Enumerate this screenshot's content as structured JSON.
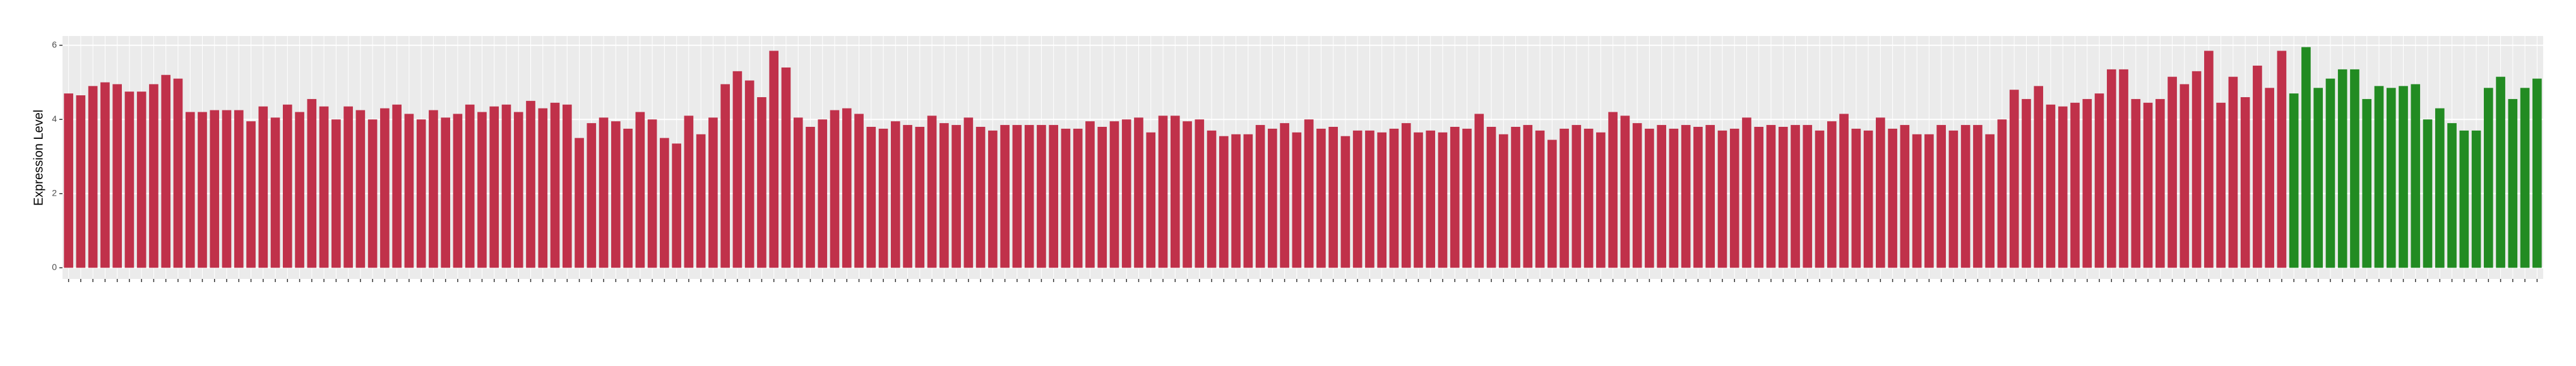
{
  "chart_data": {
    "type": "bar",
    "y_label": "Expression Level",
    "values": [
      4.7,
      4.65,
      4.9,
      5.0,
      4.95,
      4.75,
      4.75,
      4.95,
      5.2,
      5.1,
      4.2,
      4.2,
      4.25,
      4.25,
      4.25,
      3.95,
      4.35,
      4.05,
      4.4,
      4.2,
      4.55,
      4.35,
      4.0,
      4.35,
      4.25,
      4.0,
      4.3,
      4.4,
      4.15,
      4.0,
      4.25,
      4.05,
      4.15,
      4.4,
      4.2,
      4.35,
      4.4,
      4.2,
      4.5,
      4.3,
      4.45,
      4.4,
      3.5,
      3.9,
      4.05,
      3.95,
      3.75,
      4.2,
      4.0,
      3.5,
      3.35,
      4.1,
      3.6,
      4.05,
      4.95,
      5.3,
      5.05,
      4.6,
      5.85,
      5.4,
      4.05,
      3.8,
      4.0,
      4.25,
      4.3,
      4.15,
      3.8,
      3.75,
      3.95,
      3.85,
      3.8,
      4.1,
      3.9,
      3.85,
      4.05,
      3.8,
      3.7,
      3.85,
      3.85,
      3.85,
      3.85,
      3.85,
      3.75,
      3.75,
      3.95,
      3.8,
      3.95,
      4.0,
      4.05,
      3.65,
      4.1,
      4.1,
      3.95,
      4.0,
      3.7,
      3.55,
      3.6,
      3.6,
      3.85,
      3.75,
      3.9,
      3.65,
      4.0,
      3.75,
      3.8,
      3.55,
      3.7,
      3.7,
      3.65,
      3.75,
      3.9,
      3.65,
      3.7,
      3.65,
      3.8,
      3.75,
      4.15,
      3.8,
      3.6,
      3.8,
      3.85,
      3.7,
      3.45,
      3.75,
      3.85,
      3.75,
      3.65,
      4.2,
      4.1,
      3.9,
      3.75,
      3.85,
      3.75,
      3.85,
      3.8,
      3.85,
      3.7,
      3.75,
      4.05,
      3.8,
      3.85,
      3.8,
      3.85,
      3.85,
      3.7,
      3.95,
      4.15,
      3.75,
      3.7,
      4.05,
      3.75,
      3.85,
      3.6,
      3.6,
      3.85,
      3.7,
      3.85,
      3.85,
      3.6,
      4.0,
      4.8,
      4.55,
      4.9,
      4.4,
      4.35,
      4.45,
      4.55,
      4.7,
      5.35,
      5.35,
      4.55,
      4.45,
      4.55,
      5.15,
      4.95,
      5.3,
      5.85,
      4.45,
      5.15,
      4.6,
      5.45,
      4.85,
      5.85,
      4.7,
      5.95,
      4.85,
      5.1,
      5.35,
      5.35,
      4.55,
      4.9,
      4.85,
      4.9,
      4.95,
      4.0,
      4.3,
      3.9,
      3.7,
      3.7,
      4.85,
      5.15,
      4.55,
      4.85,
      5.1
    ],
    "colors": [
      "#c0314a",
      "#c0314a",
      "#c0314a",
      "#c0314a",
      "#c0314a",
      "#c0314a",
      "#c0314a",
      "#c0314a",
      "#c0314a",
      "#c0314a",
      "#c0314a",
      "#c0314a",
      "#c0314a",
      "#c0314a",
      "#c0314a",
      "#c0314a",
      "#c0314a",
      "#c0314a",
      "#c0314a",
      "#c0314a",
      "#c0314a",
      "#c0314a",
      "#c0314a",
      "#c0314a",
      "#c0314a",
      "#c0314a",
      "#c0314a",
      "#c0314a",
      "#c0314a",
      "#c0314a",
      "#c0314a",
      "#c0314a",
      "#c0314a",
      "#c0314a",
      "#c0314a",
      "#c0314a",
      "#c0314a",
      "#c0314a",
      "#c0314a",
      "#c0314a",
      "#c0314a",
      "#c0314a",
      "#c0314a",
      "#c0314a",
      "#c0314a",
      "#c0314a",
      "#c0314a",
      "#c0314a",
      "#c0314a",
      "#c0314a",
      "#c0314a",
      "#c0314a",
      "#c0314a",
      "#c0314a",
      "#c0314a",
      "#c0314a",
      "#c0314a",
      "#c0314a",
      "#c0314a",
      "#c0314a",
      "#c0314a",
      "#c0314a",
      "#c0314a",
      "#c0314a",
      "#c0314a",
      "#c0314a",
      "#c0314a",
      "#c0314a",
      "#c0314a",
      "#c0314a",
      "#c0314a",
      "#c0314a",
      "#c0314a",
      "#c0314a",
      "#c0314a",
      "#c0314a",
      "#c0314a",
      "#c0314a",
      "#c0314a",
      "#c0314a",
      "#c0314a",
      "#c0314a",
      "#c0314a",
      "#c0314a",
      "#c0314a",
      "#c0314a",
      "#c0314a",
      "#c0314a",
      "#c0314a",
      "#c0314a",
      "#c0314a",
      "#c0314a",
      "#c0314a",
      "#c0314a",
      "#c0314a",
      "#c0314a",
      "#c0314a",
      "#c0314a",
      "#c0314a",
      "#c0314a",
      "#c0314a",
      "#c0314a",
      "#c0314a",
      "#c0314a",
      "#c0314a",
      "#c0314a",
      "#c0314a",
      "#c0314a",
      "#c0314a",
      "#c0314a",
      "#c0314a",
      "#c0314a",
      "#c0314a",
      "#c0314a",
      "#c0314a",
      "#c0314a",
      "#c0314a",
      "#c0314a",
      "#c0314a",
      "#c0314a",
      "#c0314a",
      "#c0314a",
      "#c0314a",
      "#c0314a",
      "#c0314a",
      "#c0314a",
      "#c0314a",
      "#c0314a",
      "#c0314a",
      "#c0314a",
      "#c0314a",
      "#c0314a",
      "#c0314a",
      "#c0314a",
      "#c0314a",
      "#c0314a",
      "#c0314a",
      "#c0314a",
      "#c0314a",
      "#c0314a",
      "#c0314a",
      "#c0314a",
      "#c0314a",
      "#c0314a",
      "#c0314a",
      "#c0314a",
      "#c0314a",
      "#c0314a",
      "#c0314a",
      "#c0314a",
      "#c0314a",
      "#c0314a",
      "#c0314a",
      "#c0314a",
      "#c0314a",
      "#c0314a",
      "#c0314a",
      "#c0314a",
      "#c0314a",
      "#c0314a",
      "#c0314a",
      "#c0314a",
      "#c0314a",
      "#c0314a",
      "#c0314a",
      "#c0314a",
      "#c0314a",
      "#c0314a",
      "#c0314a",
      "#c0314a",
      "#c0314a",
      "#c0314a",
      "#c0314a",
      "#c0314a",
      "#c0314a",
      "#c0314a",
      "#c0314a",
      "#c0314a",
      "#c0314a",
      "#c0314a",
      "#c0314a",
      "#c0314a",
      "#c0314a",
      "#228b22",
      "#228b22",
      "#228b22",
      "#228b22",
      "#228b22",
      "#228b22",
      "#228b22",
      "#228b22",
      "#228b22",
      "#228b22",
      "#228b22",
      "#228b22",
      "#228b22",
      "#228b22",
      "#228b22",
      "#228b22",
      "#228b22",
      "#228b22",
      "#228b22",
      "#228b22",
      "#228b22"
    ],
    "categories": [
      null,
      null,
      null,
      null,
      null,
      null,
      null,
      null,
      null,
      null,
      null,
      null,
      null,
      null,
      null,
      null,
      null,
      null,
      null,
      null,
      null,
      null,
      null,
      null,
      null,
      null,
      null,
      null,
      null,
      null,
      null,
      null,
      null,
      null,
      null,
      null,
      null,
      null,
      null,
      null,
      null,
      null,
      null,
      null,
      null,
      null,
      null,
      null,
      null,
      null,
      null,
      null,
      null,
      null,
      null,
      null,
      null,
      null,
      null,
      null,
      null,
      null,
      null,
      null,
      null,
      null,
      null,
      null,
      null,
      null,
      null,
      null,
      null,
      null,
      null,
      null,
      null,
      null,
      null,
      null,
      null,
      null,
      null,
      null,
      null,
      null,
      null,
      null,
      null,
      null,
      null,
      null,
      null,
      null,
      null,
      null,
      null,
      null,
      null,
      null,
      null,
      null,
      null,
      null,
      null,
      null,
      null,
      null,
      null,
      null,
      null,
      null,
      null,
      null,
      null,
      null,
      null,
      null,
      null,
      null,
      null,
      null,
      null,
      null,
      null,
      null,
      null,
      null,
      null,
      null,
      null,
      null,
      null,
      null,
      null,
      null,
      null,
      null,
      null,
      null,
      null,
      null,
      null,
      null,
      null,
      null,
      null,
      null,
      null,
      null,
      null,
      null,
      null,
      null,
      null,
      null,
      null,
      null,
      null,
      null,
      null,
      null,
      null,
      null,
      null,
      null,
      null,
      null,
      null,
      null,
      null,
      null,
      null,
      null,
      null,
      null,
      null,
      null,
      null,
      null,
      null,
      null,
      null,
      null,
      null,
      null,
      null,
      null,
      null,
      null,
      null,
      null,
      null,
      null,
      null,
      null,
      null,
      null,
      null,
      null,
      null,
      null,
      null,
      null
    ],
    "ylim": [
      -0.3,
      6.25
    ],
    "yticks": [
      0,
      2,
      4,
      6
    ],
    "grid": true
  }
}
